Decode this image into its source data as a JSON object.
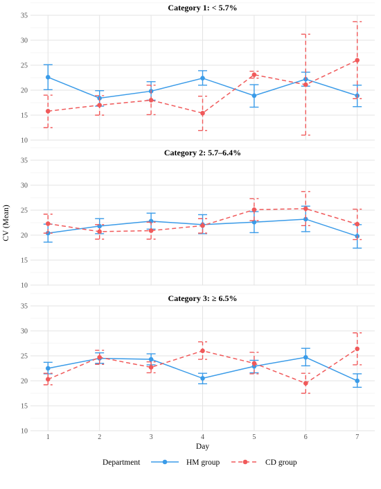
{
  "chart_data": {
    "type": "line",
    "xlabel": "Day",
    "ylabel": "CV (Mean)",
    "x": [
      1,
      2,
      3,
      4,
      5,
      6,
      7
    ],
    "ylim": [
      10,
      35
    ],
    "yticks": [
      10,
      15,
      20,
      25,
      30,
      35
    ],
    "grid": true,
    "legend": {
      "title": "Department",
      "position": "bottom",
      "entries": [
        "HM group",
        "CD group"
      ]
    },
    "colors": {
      "HM group": "#3a9be8",
      "CD group": "#f0595a"
    },
    "panels": [
      {
        "title": "Category 1: < 5.7%",
        "series": [
          {
            "name": "HM group",
            "mean": [
              22.6,
              18.4,
              19.8,
              22.4,
              18.9,
              22.2,
              18.9
            ],
            "low": [
              20.1,
              16.8,
              18.0,
              21.0,
              16.6,
              20.8,
              16.7
            ],
            "high": [
              25.1,
              19.9,
              21.7,
              23.9,
              21.1,
              23.6,
              21.0
            ]
          },
          {
            "name": "CD group",
            "mean": [
              15.8,
              17.0,
              18.0,
              15.4,
              23.1,
              21.1,
              26.0
            ],
            "low": [
              12.5,
              15.0,
              15.1,
              11.9,
              22.4,
              11.0,
              18.3
            ],
            "high": [
              19.0,
              18.9,
              21.0,
              18.8,
              23.8,
              31.2,
              33.7
            ]
          }
        ]
      },
      {
        "title": "Category 2: 5.7–6.4%",
        "series": [
          {
            "name": "HM group",
            "mean": [
              20.4,
              21.8,
              22.8,
              22.1,
              22.6,
              23.2,
              19.8
            ],
            "low": [
              18.6,
              20.3,
              21.2,
              20.3,
              20.5,
              20.7,
              17.4
            ],
            "high": [
              22.2,
              23.3,
              24.4,
              24.1,
              24.7,
              25.8,
              22.1
            ]
          },
          {
            "name": "CD group",
            "mean": [
              22.3,
              20.7,
              20.9,
              21.9,
              25.1,
              25.3,
              22.2
            ],
            "low": [
              20.4,
              19.2,
              19.2,
              20.4,
              22.9,
              21.9,
              19.1
            ],
            "high": [
              24.2,
              22.1,
              22.6,
              23.3,
              27.3,
              28.7,
              25.2
            ]
          }
        ]
      },
      {
        "title": "Category 3: ≥ 6.5%",
        "series": [
          {
            "name": "HM group",
            "mean": [
              22.5,
              24.5,
              24.3,
              20.5,
              22.9,
              24.7,
              20.0
            ],
            "low": [
              21.4,
              23.5,
              23.2,
              19.4,
              21.6,
              23.0,
              18.7
            ],
            "high": [
              23.7,
              25.6,
              25.4,
              21.5,
              24.1,
              26.5,
              21.4
            ]
          },
          {
            "name": "CD group",
            "mean": [
              20.3,
              24.7,
              22.7,
              26.0,
              23.5,
              19.5,
              26.4
            ],
            "low": [
              19.2,
              23.3,
              21.6,
              24.3,
              21.4,
              17.5,
              23.2
            ],
            "high": [
              21.5,
              26.1,
              23.8,
              27.8,
              25.7,
              21.5,
              29.6
            ]
          }
        ]
      }
    ]
  }
}
